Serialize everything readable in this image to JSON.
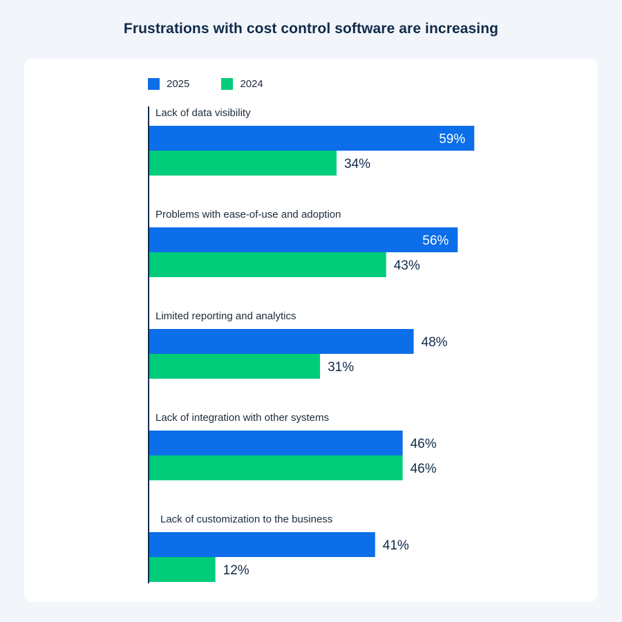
{
  "title": "Frustrations with cost control software are increasing",
  "colors": {
    "series_2025": "#0c6ee8",
    "series_2024": "#00cc7a",
    "text_dark": "#0f2a4a",
    "label_inside": "#ffffff"
  },
  "chart_data": {
    "type": "bar",
    "orientation": "horizontal",
    "categories": [
      "Lack of data visibility",
      "Problems with ease-of-use and adoption",
      "Limited reporting and analytics",
      "Lack of integration with other systems",
      "Lack of customization to the business"
    ],
    "series": [
      {
        "name": "2025",
        "color": "#0c6ee8",
        "values": [
          59,
          56,
          48,
          46,
          41
        ],
        "labels": [
          "59%",
          "56%",
          "48%",
          "46%",
          "41%"
        ]
      },
      {
        "name": "2024",
        "color": "#00cc7a",
        "values": [
          34,
          43,
          31,
          46,
          12
        ],
        "labels": [
          "34%",
          "43%",
          "31%",
          "46%",
          "12%"
        ]
      }
    ],
    "value_unit": "%",
    "legend": "top-left",
    "grid": false,
    "xlim": [
      0,
      100
    ]
  }
}
